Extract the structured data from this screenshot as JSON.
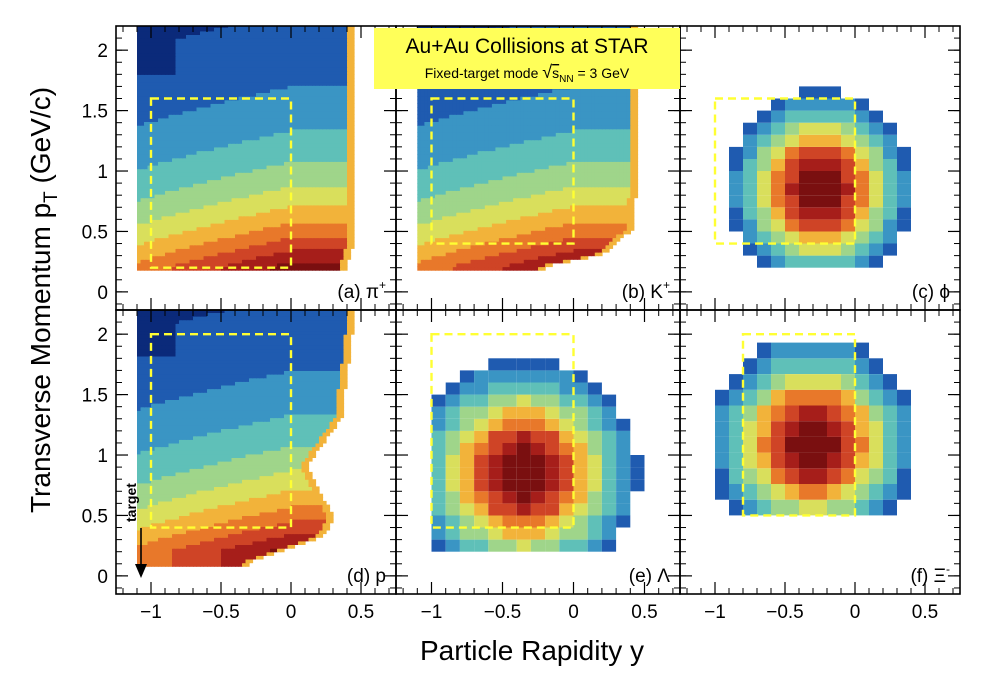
{
  "banner": {
    "title": "Au+Au Collisions at STAR",
    "subtitle_prefix": "Fixed-target mode ",
    "subtitle_root_s": "s",
    "subtitle_sub": "NN",
    "subtitle_suffix": " = 3 GeV",
    "color": "#ffff59"
  },
  "axes": {
    "xlabel": "Particle Rapidity y",
    "ylabel_main": "Transverse Momentum p",
    "ylabel_sub": "T",
    "ylabel_unit": " (GeV/c)",
    "xlim": [
      -1.25,
      0.75
    ],
    "ylim": [
      -0.15,
      2.2
    ],
    "x_ticks": [
      -1,
      -0.5,
      0,
      0.5
    ],
    "x_tick_labels": [
      "−1",
      "−0.5",
      "0",
      "0.5"
    ],
    "y_ticks": [
      0,
      0.5,
      1,
      1.5,
      2
    ],
    "y_tick_labels": [
      "0",
      "0.5",
      "1",
      "1.5",
      "2"
    ]
  },
  "target_arrow": {
    "label": "target",
    "x": -1.05,
    "y_from": 0.45,
    "y_to": 0.0
  },
  "colors": {
    "dashed_box": "#ffff33",
    "scale": [
      "#0b2a7a",
      "#1f5bb0",
      "#3a95c4",
      "#5fc0b8",
      "#9fd58a",
      "#d9df5c",
      "#f2b33a",
      "#e8782a",
      "#cf4426",
      "#a61e1a",
      "#7a0f10"
    ]
  },
  "chart_data": [
    {
      "id": "a",
      "type": "heatmap",
      "particle": "(a) π⁺",
      "label_text": "(a) π",
      "label_sup": "+",
      "box": {
        "x": [
          -1.0,
          0.0
        ],
        "y": [
          0.2,
          1.6
        ]
      },
      "acceptance": {
        "y_min": -1.1,
        "y_edge": [
          [
            0.2,
            0.38
          ],
          [
            0.3,
            0.42
          ],
          [
            0.5,
            0.45
          ],
          [
            1.0,
            0.45
          ],
          [
            2.2,
            0.45
          ]
        ],
        "pt_min": 0.18,
        "pt_max": 2.2
      }
    },
    {
      "id": "b",
      "type": "heatmap",
      "particle": "(b) K⁺",
      "label_text": "(b) K",
      "label_sup": "+",
      "box": {
        "x": [
          -1.0,
          0.0
        ],
        "y": [
          0.4,
          1.6
        ]
      },
      "acceptance": {
        "y_min": -1.1,
        "y_edge": [
          [
            0.2,
            -0.2
          ],
          [
            0.3,
            0.2
          ],
          [
            0.5,
            0.4
          ],
          [
            1.0,
            0.45
          ],
          [
            2.2,
            0.45
          ]
        ],
        "pt_min": 0.18,
        "pt_max": 2.2
      }
    },
    {
      "id": "c",
      "type": "heatmap",
      "particle": "(c) ϕ",
      "label_text": "(c) ϕ",
      "label_sup": "",
      "box": {
        "x": [
          -1.0,
          0.0
        ],
        "y": [
          0.4,
          1.6
        ]
      },
      "binned": {
        "dx": 0.1,
        "dy": 0.1,
        "y0": -1.0,
        "y1": 0.4,
        "pt0": 0.2,
        "pt1": 2.2,
        "peak": [
          -0.25,
          0.85
        ],
        "sx": 0.45,
        "sy": 0.55
      }
    },
    {
      "id": "d",
      "type": "heatmap",
      "particle": "(d) p",
      "label_text": "(d) p",
      "label_sup": "",
      "box": {
        "x": [
          -1.0,
          0.0
        ],
        "y": [
          0.4,
          2.0
        ]
      },
      "acceptance": {
        "y_min": -1.1,
        "y_edge": [
          [
            0.1,
            -0.3
          ],
          [
            0.3,
            0.2
          ],
          [
            0.45,
            0.3
          ],
          [
            0.9,
            0.1
          ],
          [
            1.3,
            0.35
          ],
          [
            2.2,
            0.45
          ]
        ],
        "pt_min": 0.08,
        "pt_max": 2.2
      }
    },
    {
      "id": "e",
      "type": "heatmap",
      "particle": "(e) Λ",
      "label_text": "(e) Λ",
      "label_sup": "",
      "box": {
        "x": [
          -1.0,
          0.0
        ],
        "y": [
          0.4,
          2.0
        ]
      },
      "binned": {
        "dx": 0.1,
        "dy": 0.1,
        "y0": -1.0,
        "y1": 0.6,
        "pt0": 0.2,
        "pt1": 2.1,
        "peak": [
          -0.35,
          0.85
        ],
        "sx": 0.55,
        "sy": 0.65
      }
    },
    {
      "id": "f",
      "type": "heatmap",
      "particle": "(f) Ξ⁻",
      "label_text": "(f) Ξ",
      "label_sup": "-",
      "box": {
        "x": [
          -0.8,
          0.0
        ],
        "y": [
          0.5,
          2.0
        ]
      },
      "binned": {
        "dx": 0.1,
        "dy": 0.13,
        "y0": -1.0,
        "y1": 0.4,
        "pt0": 0.5,
        "pt1": 2.0,
        "peak": [
          -0.3,
          1.1
        ],
        "sx": 0.5,
        "sy": 0.6
      }
    }
  ]
}
